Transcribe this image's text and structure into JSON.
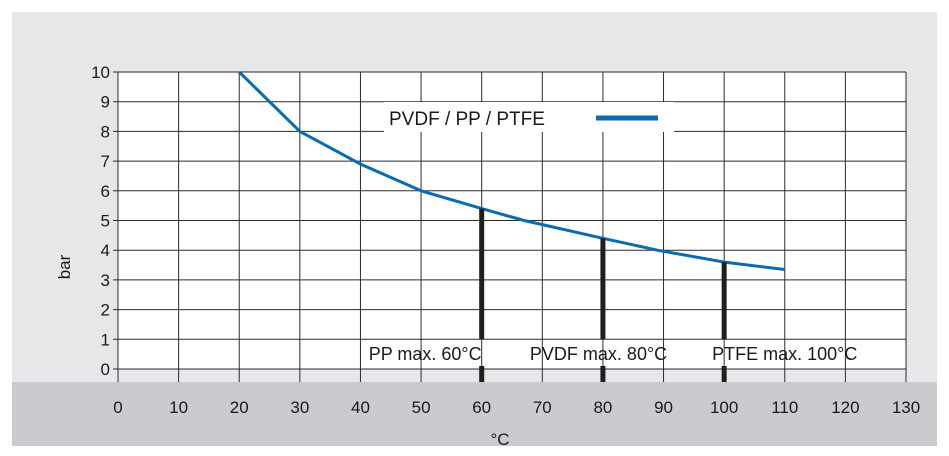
{
  "chart_data": {
    "type": "line",
    "xlabel": "°C",
    "ylabel": "bar",
    "xlim": [
      0,
      130
    ],
    "ylim": [
      0,
      10
    ],
    "x_ticks": [
      "0",
      "10",
      "20",
      "30",
      "40",
      "50",
      "60",
      "70",
      "80",
      "90",
      "100",
      "110",
      "120",
      "130"
    ],
    "y_ticks": [
      "0",
      "1",
      "2",
      "3",
      "4",
      "5",
      "6",
      "7",
      "8",
      "9",
      "10"
    ],
    "grid": true,
    "legend_position": "top-center",
    "series": [
      {
        "name": "PVDF / PP / PTFE",
        "color": "#0a6bb0",
        "x": [
          20,
          30,
          40,
          50,
          60,
          67,
          80,
          89,
          100,
          110
        ],
        "y": [
          10,
          8,
          6.9,
          6.0,
          5.4,
          5.0,
          4.4,
          4.0,
          3.6,
          3.35
        ]
      }
    ],
    "annotations": [
      {
        "label": "PP max. 60°C",
        "x": 60,
        "y": 5.4
      },
      {
        "label": "PVDF max. 80°C",
        "x": 80,
        "y": 4.4
      },
      {
        "label": "PTFE max. 100°C",
        "x": 100,
        "y": 3.6
      }
    ]
  }
}
